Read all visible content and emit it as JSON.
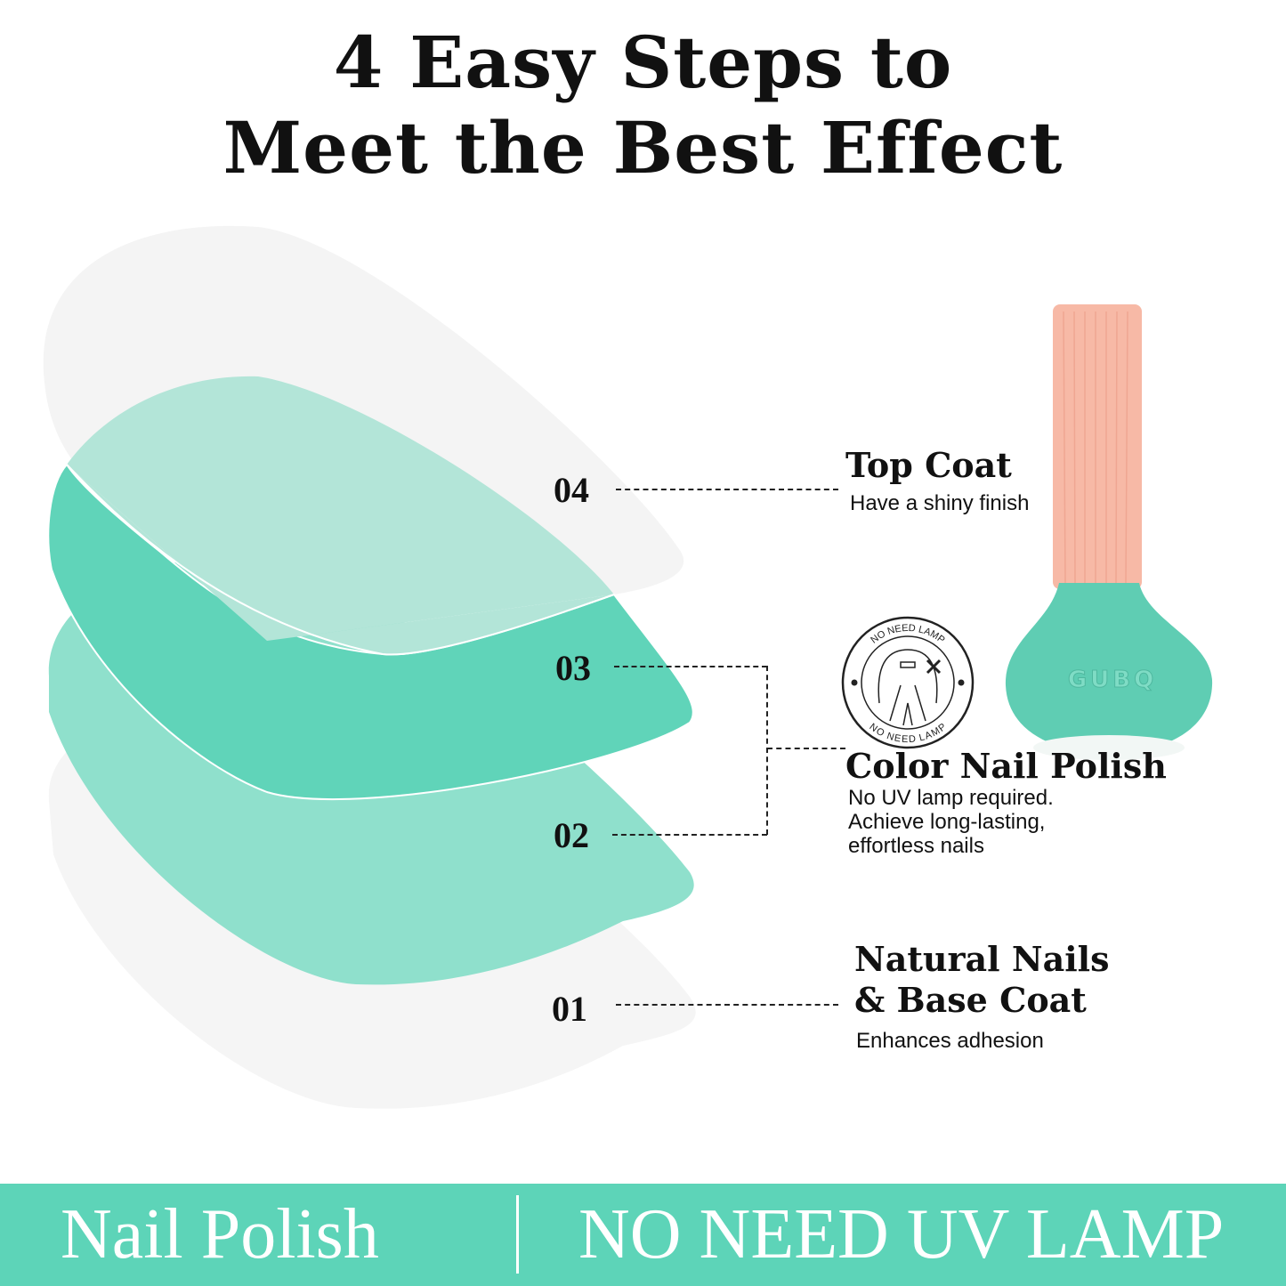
{
  "title": {
    "line1": "4 Easy Steps to",
    "line2": "Meet the Best Effect"
  },
  "steps": [
    {
      "number": "04",
      "heading": "Top Coat",
      "description": [
        "Have a shiny finish"
      ]
    },
    {
      "number": "03"
    },
    {
      "number": "02",
      "heading": "Color Nail Polish",
      "description": [
        "No UV lamp required.",
        "Achieve long-lasting,",
        "effortless nails"
      ]
    },
    {
      "number": "01",
      "heading": [
        "Natural Nails",
        "& Base Coat"
      ],
      "description": [
        "Enhances adhesion"
      ]
    }
  ],
  "badge": {
    "text_top": "NO NEED LAMP",
    "text_bottom": "NO NEED LAMP",
    "icon": "no-lamp-icon"
  },
  "bottle": {
    "brand": "GUBQ"
  },
  "banner": {
    "left": "Nail Polish",
    "right": "NO NEED UV LAMP"
  },
  "colors": {
    "mint": "#5dd4b8",
    "light_mint": "#b3e5d8",
    "mid_mint": "#8fe0cc",
    "gray": "#f4f4f4",
    "cap": "#f7b9a6"
  }
}
